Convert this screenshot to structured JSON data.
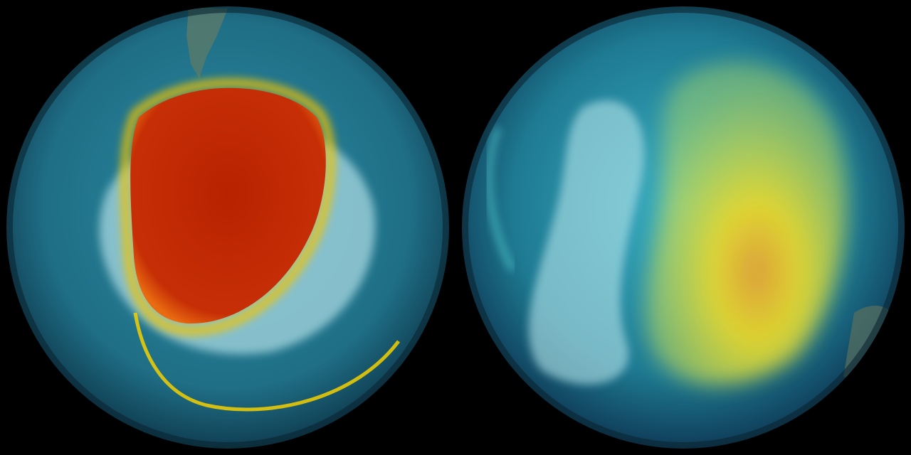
{
  "scene": {
    "background": "#000000",
    "globes": [
      {
        "name": "left",
        "ocean_color": "#1f6f86",
        "vortex_core_color": "#c22a05",
        "vortex_edge_color": "#f5d000",
        "ice_color": "#a8d8e0"
      },
      {
        "name": "right",
        "ocean_color": "#1e7a92",
        "vortex_core_color": "#f0d820",
        "vortex_edge_color": "#f6e83a",
        "ice_color": "#b6e4ea"
      }
    ]
  }
}
